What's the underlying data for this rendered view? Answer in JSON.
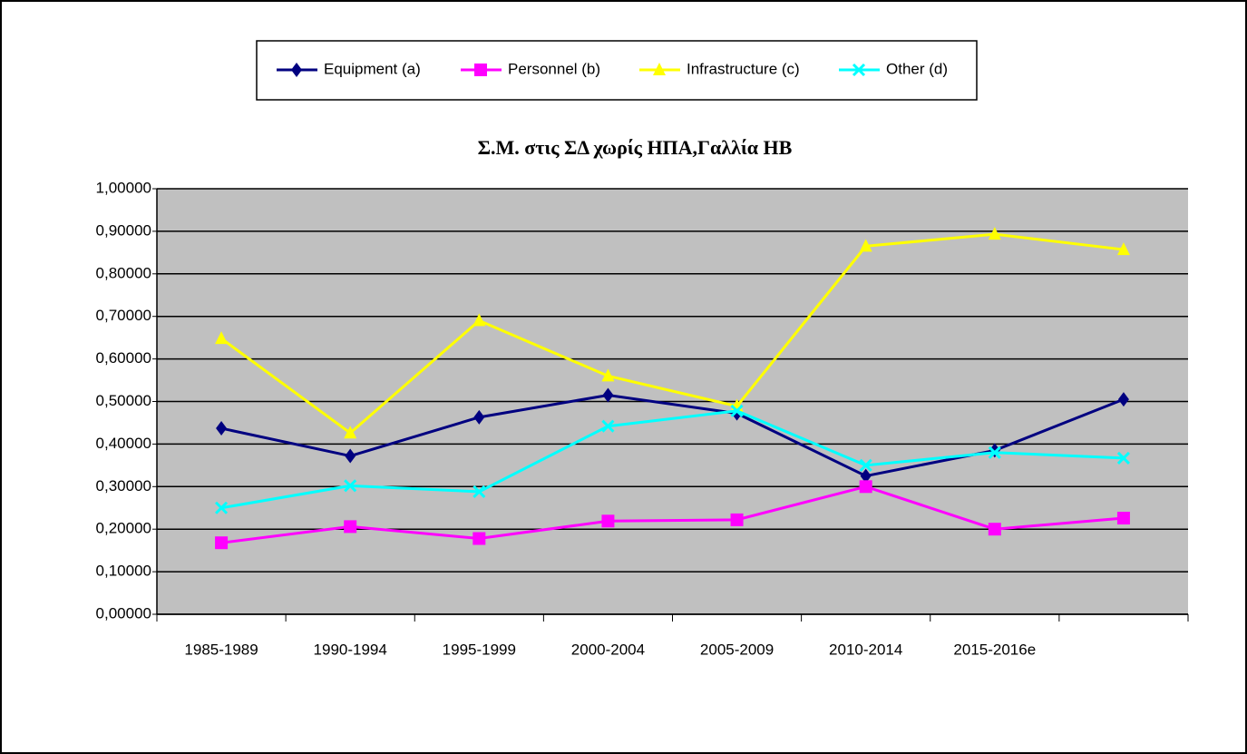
{
  "chart_data": {
    "type": "line",
    "title": "Σ.Μ. στις ΣΔ χωρίς ΗΠΑ,Γαλλία ΗΒ",
    "categories": [
      "1985-1989",
      "1990-1994",
      "1995-1999",
      "2000-2004",
      "2005-2009",
      "2010-2014",
      "2015-2016e",
      null
    ],
    "series": [
      {
        "name": "Equipment (a)",
        "color": "#000080",
        "marker": "diamond",
        "values": [
          0.437,
          0.372,
          0.463,
          0.515,
          0.472,
          0.325,
          0.385,
          0.505
        ]
      },
      {
        "name": "Personnel (b)",
        "color": "#ff00ff",
        "marker": "square",
        "values": [
          0.168,
          0.206,
          0.178,
          0.219,
          0.222,
          0.3,
          0.2,
          0.226
        ]
      },
      {
        "name": "Infrastructure (c)",
        "color": "#ffff00",
        "marker": "triangle",
        "values": [
          0.648,
          0.426,
          0.69,
          0.56,
          0.489,
          0.865,
          0.893,
          0.857
        ]
      },
      {
        "name": "Other (d)",
        "color": "#00ffff",
        "marker": "x",
        "values": [
          0.25,
          0.302,
          0.288,
          0.442,
          0.478,
          0.35,
          0.38,
          0.367
        ]
      }
    ],
    "ylim": [
      0,
      1
    ],
    "yticks": [
      {
        "value": 0,
        "label": "0,00000"
      },
      {
        "value": 0.1,
        "label": "0,10000"
      },
      {
        "value": 0.2,
        "label": "0,20000"
      },
      {
        "value": 0.3,
        "label": "0,30000"
      },
      {
        "value": 0.4,
        "label": "0,40000"
      },
      {
        "value": 0.5,
        "label": "0,50000"
      },
      {
        "value": 0.6,
        "label": "0,60000"
      },
      {
        "value": 0.7,
        "label": "0,70000"
      },
      {
        "value": 0.8,
        "label": "0,80000"
      },
      {
        "value": 0.9,
        "label": "0,90000"
      },
      {
        "value": 1,
        "label": "1,00000"
      }
    ],
    "grid": true,
    "legend": "top",
    "plot_background": "#c0c0c0"
  }
}
